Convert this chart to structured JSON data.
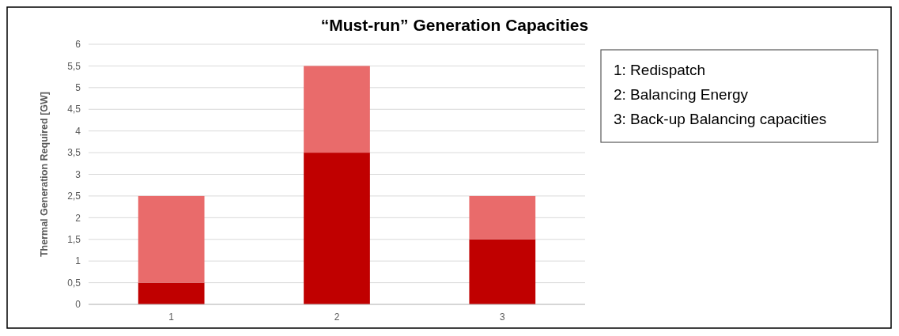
{
  "chart_data": {
    "type": "bar",
    "title": "“Must-run” Generation Capacities",
    "ylabel": "Thermal Generation Required [GW]",
    "categories": [
      "1",
      "2",
      "3"
    ],
    "stacked": true,
    "series": [
      {
        "color": "#c00000",
        "values": [
          0.5,
          3.5,
          1.5
        ]
      },
      {
        "color": "#e96b6b",
        "values": [
          2,
          2,
          1
        ]
      }
    ],
    "ylim": [
      0,
      6
    ],
    "yticks": [
      0,
      {
        "value": 0.5,
        "label": "0,5"
      },
      1,
      {
        "value": 1.5,
        "label": "1,5"
      },
      2,
      {
        "value": 2.5,
        "label": "2,5"
      },
      3,
      {
        "value": 3.5,
        "label": "3,5"
      },
      4,
      {
        "value": 4.5,
        "label": "4,5"
      },
      5,
      {
        "value": 5.5,
        "label": "5,5"
      },
      6
    ],
    "grid": "y",
    "annotations": [
      "1: Redispatch",
      "2: Balancing Energy",
      "3: Back-up Balancing capacities"
    ]
  }
}
